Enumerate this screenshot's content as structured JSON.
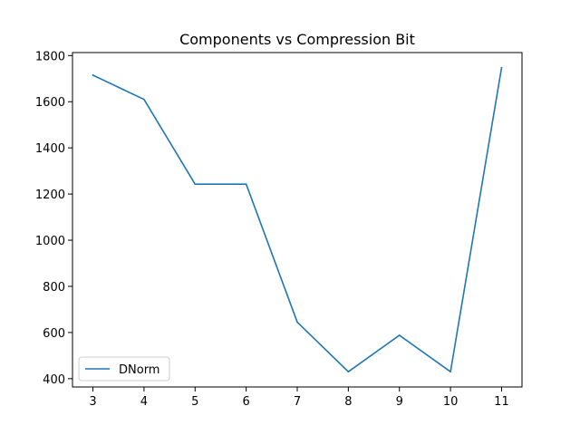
{
  "chart_data": {
    "type": "line",
    "title": "Components vs Compression Bit",
    "xlabel": "",
    "ylabel": "",
    "x": [
      3,
      4,
      5,
      6,
      7,
      8,
      9,
      10,
      11
    ],
    "series": [
      {
        "name": "DNorm",
        "color": "#1f77b4",
        "values": [
          1715,
          1610,
          1243,
          1243,
          645,
          430,
          588,
          430,
          1747
        ]
      }
    ],
    "xticks": [
      "3",
      "4",
      "5",
      "6",
      "7",
      "8",
      "9",
      "10",
      "11"
    ],
    "yticks": [
      "400",
      "600",
      "800",
      "1000",
      "1200",
      "1400",
      "1600",
      "1800"
    ],
    "xlim": [
      2.6,
      11.4
    ],
    "ylim": [
      364,
      1813
    ],
    "grid": false,
    "legend_position": "lower-left"
  }
}
